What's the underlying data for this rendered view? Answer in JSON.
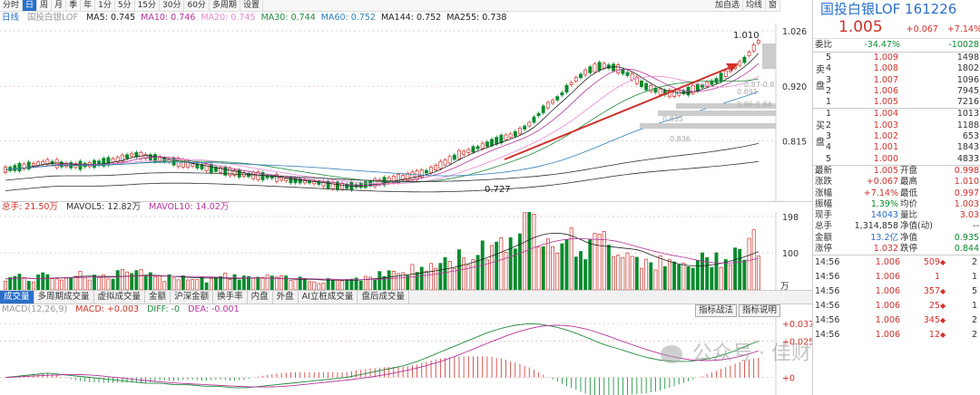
{
  "toolbar": {
    "periods": [
      "分时",
      "日",
      "周",
      "月",
      "季",
      "年",
      "1分",
      "5分",
      "15分",
      "30分",
      "60分",
      "多周期",
      "设置"
    ],
    "active_period": "日",
    "right_buttons": [
      "加自选",
      "均线",
      "窗"
    ]
  },
  "price_legend": {
    "period": "日线",
    "name": "国投白银LOF",
    "ma": [
      {
        "label": "MA5: 0.745",
        "color": "#222222"
      },
      {
        "label": "MA10: 0.746",
        "color": "#b5339c"
      },
      {
        "label": "MA20: 0.745",
        "color": "#e888d6"
      },
      {
        "label": "MA30: 0.744",
        "color": "#1f8a3b"
      },
      {
        "label": "MA60: 0.752",
        "color": "#2f7fb8"
      },
      {
        "label": "MA144: 0.752",
        "color": "#222222"
      },
      {
        "label": "MA255: 0.738",
        "color": "#222222"
      }
    ]
  },
  "price_axis": [
    "1.026",
    "0.920",
    "0.815"
  ],
  "annotations": {
    "high": "1.010",
    "low": "0.727",
    "bands": [
      "0.87-0.8",
      "0.86-0.84",
      "0.836",
      "0.835",
      "0.891"
    ]
  },
  "volume_legend": {
    "total": "总手: 21.50万",
    "mavol5": "MAVOL5: 12.82万",
    "mavol10": "MAVOL10: 14.02万"
  },
  "volume_axis": [
    "198",
    "100"
  ],
  "volume_unit": "万",
  "volume_tabs": [
    "成交量",
    "多周期成交量",
    "虚拟成交量",
    "金额",
    "沪深金额",
    "换手率",
    "内盘",
    "外盘",
    "AI立桩成交量",
    "盘后成交量"
  ],
  "macd_legend": {
    "name": "MACD(12,26,9)",
    "macd": "MACD: +0.003",
    "diff": "DIFF: -0",
    "dea": "DEA: -0.001"
  },
  "macd_buttons": [
    "指标战法",
    "指标说明"
  ],
  "macd_axis": [
    "+0.037",
    "+0.025",
    "+0"
  ],
  "watermark": "公众号 · 佳财一分助",
  "quote": {
    "name": "国投白银LOF",
    "code": "161226",
    "price": "1.005",
    "change": "+0.067",
    "change_pct": "+7.14%",
    "weibi_label": "委比",
    "weibi": "-34.47%",
    "weicha": "-10028",
    "sell_label": "卖盘",
    "buy_label": "买盘",
    "sell": [
      {
        "level": "5",
        "price": "1.009",
        "vol": "1498"
      },
      {
        "level": "4",
        "price": "1.008",
        "vol": "1802"
      },
      {
        "level": "3",
        "price": "1.007",
        "vol": "1096"
      },
      {
        "level": "2",
        "price": "1.006",
        "vol": "7945"
      },
      {
        "level": "1",
        "price": "1.005",
        "vol": "7216"
      }
    ],
    "buy": [
      {
        "level": "1",
        "price": "1.004",
        "vol": "1013"
      },
      {
        "level": "2",
        "price": "1.003",
        "vol": "1188"
      },
      {
        "level": "3",
        "price": "1.002",
        "vol": "653"
      },
      {
        "level": "4",
        "price": "1.001",
        "vol": "1843"
      },
      {
        "level": "5",
        "price": "1.000",
        "vol": "4833"
      }
    ],
    "stats": [
      {
        "l1": "最新",
        "v1": "1.005",
        "c1": "red",
        "l2": "开盘",
        "v2": "0.998",
        "c2": "red"
      },
      {
        "l1": "涨跌",
        "v1": "+0.067",
        "c1": "red",
        "l2": "最高",
        "v2": "1.010",
        "c2": "red"
      },
      {
        "l1": "涨幅",
        "v1": "+7.14%",
        "c1": "red",
        "l2": "最低",
        "v2": "0.997",
        "c2": "red"
      },
      {
        "l1": "振幅",
        "v1": "1.39%",
        "c1": "green",
        "l2": "均价",
        "v2": "1.003",
        "c2": "red"
      },
      {
        "l1": "现手",
        "v1": "14043",
        "c1": "blue",
        "l2": "量比",
        "v2": "3.03",
        "c2": "red"
      },
      {
        "l1": "总手",
        "v1": "1,314,858",
        "c1": "",
        "l2": "净值(动)",
        "v2": "--",
        "c2": ""
      },
      {
        "l1": "金额",
        "v1": "13.2亿",
        "c1": "blue",
        "l2": "净值",
        "v2": "0.935",
        "c2": "green"
      },
      {
        "l1": "涨停",
        "v1": "1.032",
        "c1": "red",
        "l2": "跌停",
        "v2": "0.844",
        "c2": "green"
      }
    ],
    "ticks": [
      {
        "time": "14:56",
        "price": "1.006",
        "vol": "509",
        "flag": "◆",
        "extra": "2"
      },
      {
        "time": "14:56",
        "price": "1.006",
        "vol": "1",
        "flag": "",
        "extra": "1"
      },
      {
        "time": "14:56",
        "price": "1.006",
        "vol": "357",
        "flag": "◆",
        "extra": "5"
      },
      {
        "time": "14:56",
        "price": "1.006",
        "vol": "25",
        "flag": "◆",
        "extra": "1"
      },
      {
        "time": "14:56",
        "price": "1.006",
        "vol": "345",
        "flag": "◆",
        "extra": "2"
      },
      {
        "time": "14:56",
        "price": "1.006",
        "vol": "12",
        "flag": "◆",
        "extra": "2"
      }
    ]
  },
  "chart_data": {
    "type": "candlestick",
    "ylim": [
      0.7,
      1.04
    ],
    "price_trend": [
      0.76,
      0.765,
      0.77,
      0.775,
      0.77,
      0.768,
      0.77,
      0.775,
      0.78,
      0.79,
      0.785,
      0.78,
      0.775,
      0.77,
      0.765,
      0.76,
      0.755,
      0.75,
      0.748,
      0.745,
      0.74,
      0.738,
      0.735,
      0.73,
      0.728,
      0.73,
      0.735,
      0.74,
      0.745,
      0.75,
      0.76,
      0.775,
      0.79,
      0.8,
      0.81,
      0.82,
      0.83,
      0.85,
      0.88,
      0.9,
      0.93,
      0.95,
      0.96,
      0.955,
      0.94,
      0.92,
      0.91,
      0.905,
      0.91,
      0.92,
      0.93,
      0.95,
      0.97,
      1.005
    ],
    "volume_trend": [
      35,
      40,
      30,
      45,
      38,
      50,
      42,
      36,
      48,
      55,
      40,
      35,
      45,
      38,
      30,
      42,
      36,
      40,
      33,
      38,
      30,
      35,
      28,
      32,
      30,
      38,
      42,
      50,
      55,
      60,
      70,
      80,
      95,
      110,
      130,
      150,
      170,
      198,
      180,
      160,
      140,
      120,
      150,
      130,
      110,
      90,
      80,
      70,
      75,
      85,
      95,
      110,
      130,
      150
    ],
    "macd_diff": [
      0,
      0.001,
      0.002,
      0.003,
      0.002,
      0.001,
      0,
      -0.001,
      -0.002,
      -0.003,
      -0.004,
      -0.004,
      -0.005,
      -0.005,
      -0.006,
      -0.006,
      -0.007,
      -0.007,
      -0.006,
      -0.005,
      -0.004,
      -0.003,
      -0.002,
      -0.001,
      0,
      0.002,
      0.004,
      0.006,
      0.008,
      0.011,
      0.015,
      0.019,
      0.023,
      0.027,
      0.031,
      0.034,
      0.036,
      0.037,
      0.036,
      0.034,
      0.031,
      0.027,
      0.023,
      0.02,
      0.017,
      0.014,
      0.012,
      0.011,
      0.011,
      0.012,
      0.014,
      0.017,
      0.021,
      0.025
    ]
  }
}
